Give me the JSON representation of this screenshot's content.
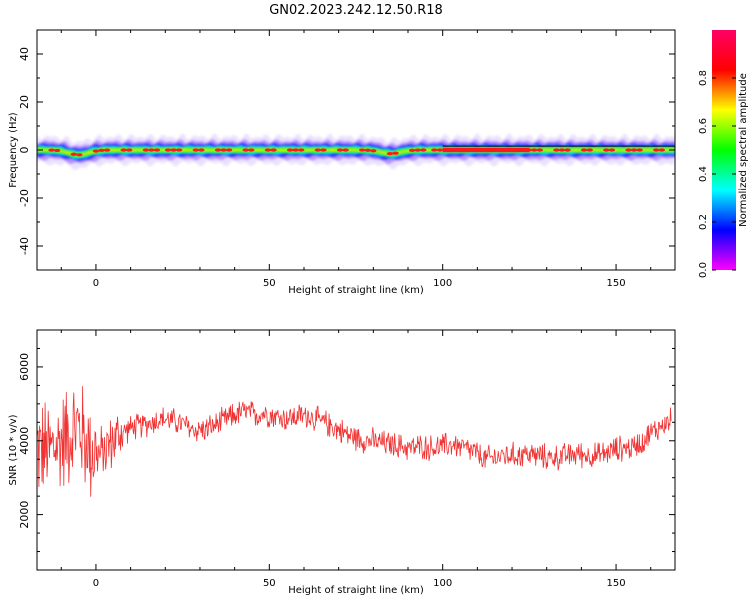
{
  "figure_title": "GN02.2023.242.12.50.R18",
  "colors": {
    "snr_line": "#f03232",
    "axis": "#000000",
    "colorbar_stops": [
      "#ff00ff",
      "#0000ff",
      "#00ffff",
      "#00ff00",
      "#ffff00",
      "#ff0000",
      "#ff0066"
    ]
  },
  "chart_data": [
    {
      "type": "heatmap",
      "name": "spectrogram",
      "xlabel": "Height of straight line (km)",
      "ylabel": "Frequency (Hz)",
      "xlim": [
        -17,
        167
      ],
      "ylim": [
        -50,
        50
      ],
      "x_ticks": [
        0,
        50,
        100,
        150
      ],
      "y_ticks": [
        -40,
        -20,
        0,
        20,
        40
      ],
      "grid": false,
      "description_values": {
        "band_center_hz": 0,
        "band_halfwidth_hz": [
          2,
          6
        ],
        "band_dip_hz": [
          [
            -5,
            -2
          ],
          [
            85,
            -1.5
          ]
        ]
      },
      "colorbar": {
        "label": "Normalized spectral amplitude",
        "range": [
          0.0,
          1.0
        ],
        "ticks": [
          0.0,
          0.2,
          0.4,
          0.6,
          0.8
        ]
      }
    },
    {
      "type": "line",
      "name": "snr",
      "xlabel": "Height of straight line (km)",
      "ylabel": "SNR (10 * v/v)",
      "xlim": [
        -17,
        167
      ],
      "ylim": [
        500,
        7000
      ],
      "x_ticks": [
        0,
        50,
        100,
        150
      ],
      "y_ticks": [
        2000,
        4000,
        6000
      ],
      "grid": false,
      "series": [
        {
          "x": [
            -17,
            -14,
            -11,
            -8,
            -5,
            -2,
            1,
            4,
            7,
            10,
            13,
            16,
            19,
            22,
            25,
            28,
            31,
            34,
            37,
            40,
            43,
            46,
            49,
            52,
            55,
            58,
            61,
            64,
            67,
            70,
            73,
            76,
            79,
            82,
            85,
            88,
            91,
            94,
            97,
            100,
            103,
            106,
            109,
            112,
            115,
            118,
            121,
            124,
            127,
            130,
            133,
            136,
            139,
            142,
            145,
            148,
            151,
            154,
            157,
            160,
            163,
            166
          ],
          "values": [
            3800,
            3700,
            3900,
            4200,
            4400,
            3800,
            3600,
            3900,
            4200,
            4350,
            4400,
            4500,
            4600,
            4550,
            4450,
            4300,
            4300,
            4400,
            4550,
            4700,
            4800,
            4700,
            4750,
            4650,
            4600,
            4650,
            4700,
            4550,
            4450,
            4300,
            4150,
            4050,
            4000,
            3950,
            3900,
            3850,
            3800,
            3850,
            3800,
            3850,
            3900,
            3800,
            3700,
            3500,
            3550,
            3600,
            3600,
            3650,
            3600,
            3550,
            3550,
            3600,
            3650,
            3600,
            3600,
            3700,
            3800,
            3800,
            3950,
            4200,
            4400,
            4550
          ]
        }
      ]
    }
  ]
}
